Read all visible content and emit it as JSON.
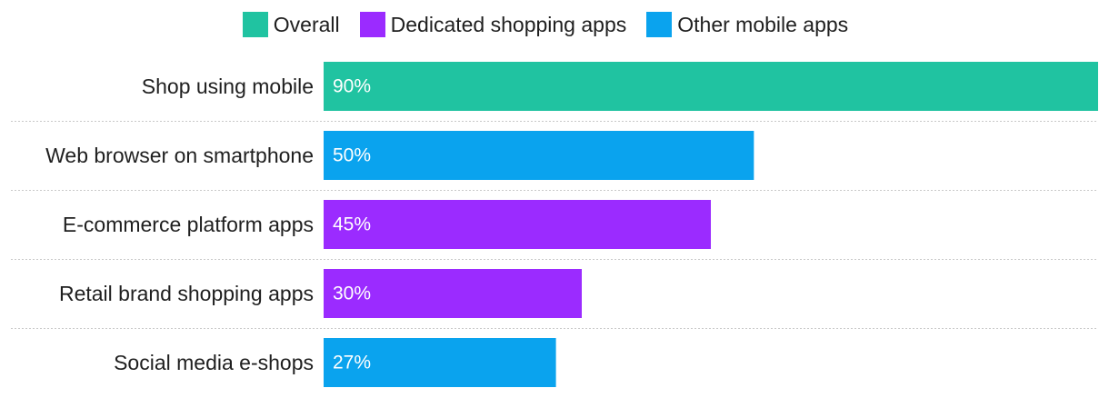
{
  "colors": {
    "overall": "#20c3a1",
    "dedicated": "#9b2bff",
    "other": "#0aa3ee",
    "gridline": "#c9c9c9",
    "label_text": "#1f1f1f",
    "value_text": "#ffffff"
  },
  "legend": [
    {
      "label": "Overall",
      "color_key": "overall"
    },
    {
      "label": "Dedicated shopping apps",
      "color_key": "dedicated"
    },
    {
      "label": "Other mobile apps",
      "color_key": "other"
    }
  ],
  "chart_data": {
    "type": "bar",
    "orientation": "horizontal",
    "categories": [
      "Shop using mobile",
      "Web browser on smartphone",
      "E-commerce platform apps",
      "Retail brand shopping apps",
      "Social media e-shops"
    ],
    "values": [
      90,
      50,
      45,
      30,
      27
    ],
    "value_labels": [
      "90%",
      "50%",
      "45%",
      "30%",
      "27%"
    ],
    "bar_groups": [
      "overall",
      "other",
      "dedicated",
      "dedicated",
      "other"
    ],
    "xlim": [
      0,
      90
    ],
    "grid": false,
    "legend_position": "top"
  }
}
